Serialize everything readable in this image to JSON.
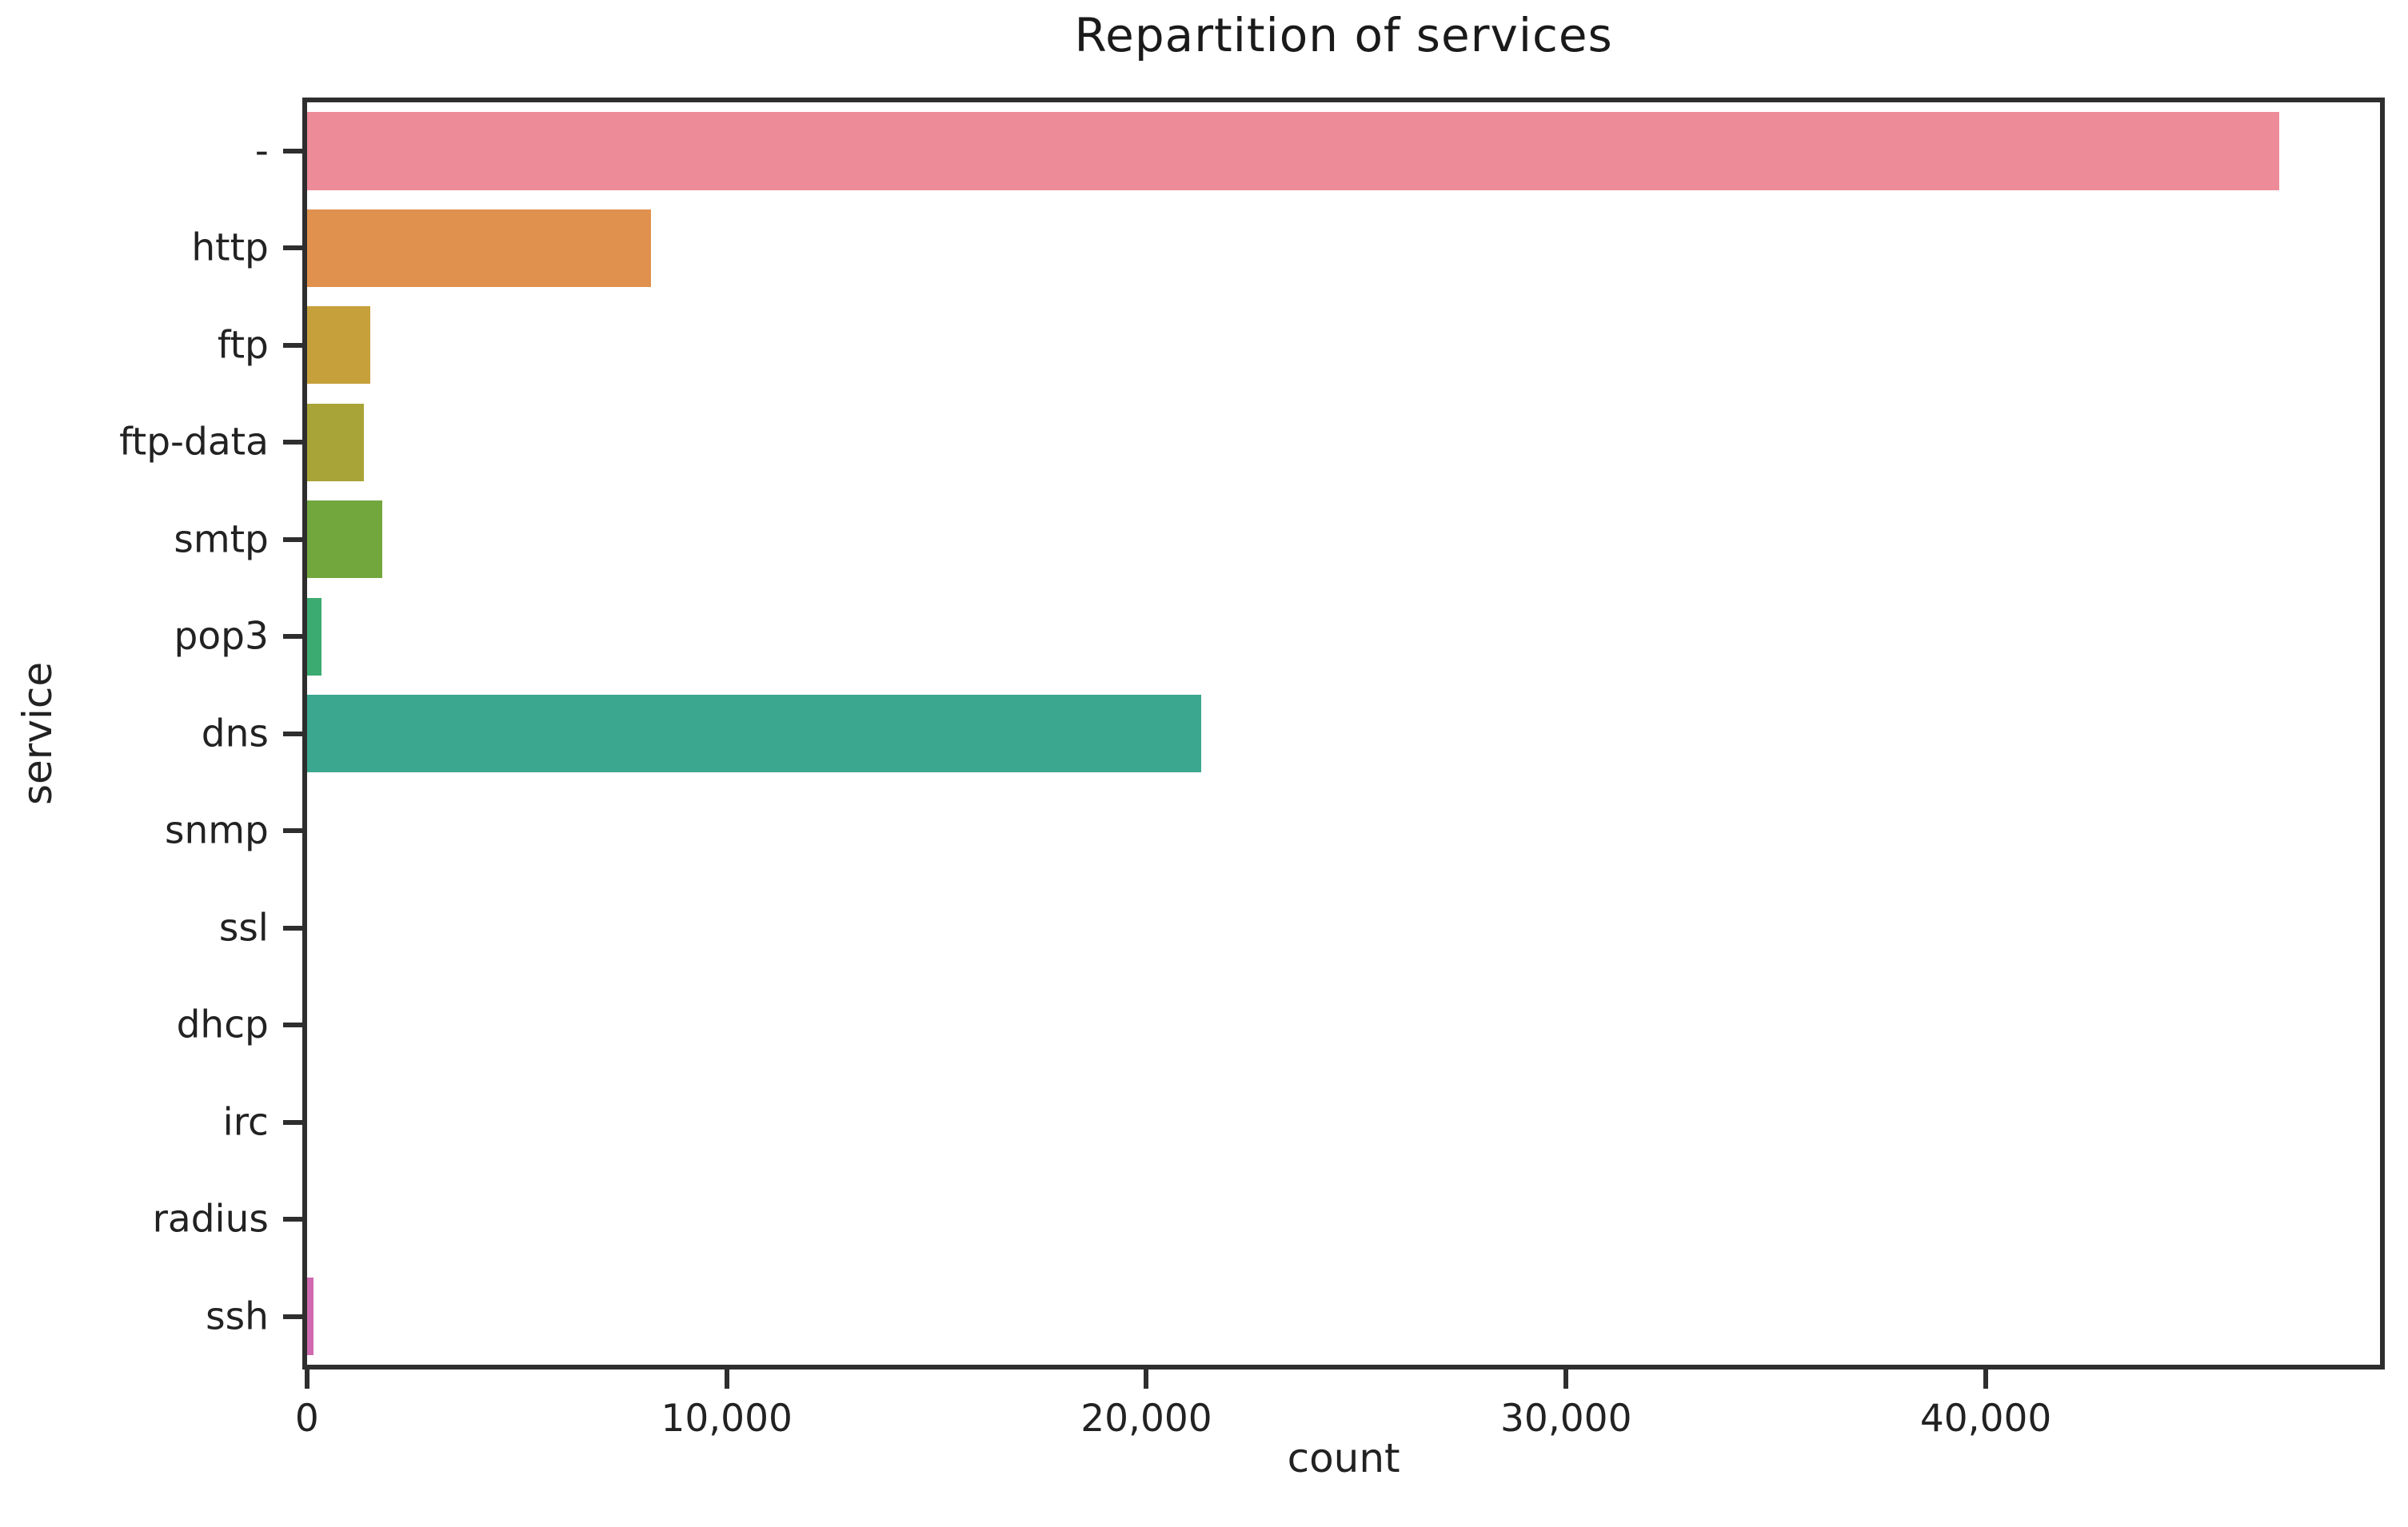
{
  "chart_data": {
    "type": "bar",
    "orientation": "horizontal",
    "title": "Repartition of services",
    "xlabel": "count",
    "ylabel": "service",
    "categories": [
      "-",
      "http",
      "ftp",
      "ftp-data",
      "smtp",
      "pop3",
      "dns",
      "snmp",
      "ssl",
      "dhcp",
      "irc",
      "radius",
      "ssh"
    ],
    "values": [
      47000,
      8200,
      1500,
      1350,
      1800,
      350,
      21300,
      0,
      0,
      0,
      0,
      0,
      150
    ],
    "bar_colors": [
      "#ee8b99",
      "#e0914d",
      "#c6a03a",
      "#a8a437",
      "#72a73e",
      "#3cab72",
      "#3ba78f",
      "#35aab5",
      "#3ba3d0",
      "#6f9cf4",
      "#b07ff0",
      "#e66bea",
      "#d06ab0"
    ],
    "xlim": [
      0,
      49400
    ],
    "xticks": [
      0,
      10000,
      20000,
      30000,
      40000
    ],
    "xtick_labels": [
      "0",
      "10,000",
      "20,000",
      "30,000",
      "40,000"
    ],
    "grid": false,
    "legend": null,
    "axis_color": "#2e2e2e",
    "background": "#ffffff"
  }
}
